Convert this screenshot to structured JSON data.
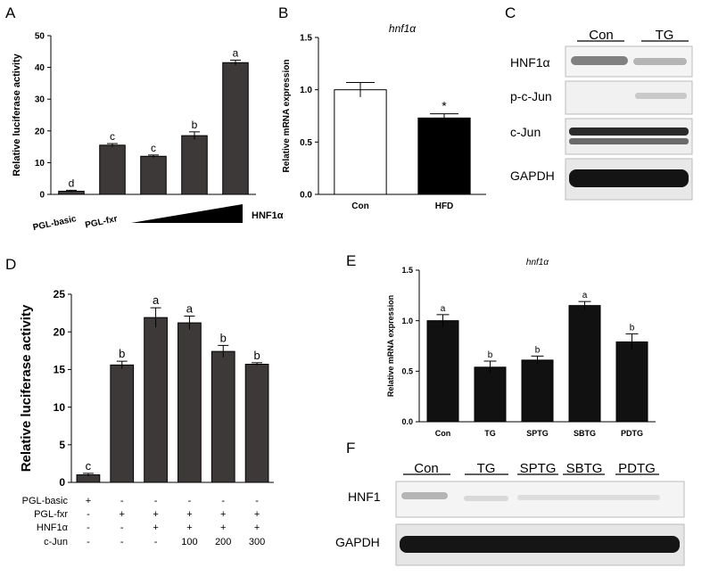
{
  "chart_data": [
    {
      "panel": "A",
      "type": "bar",
      "categories": [
        "PGL-basic",
        "PGL-fxr",
        "",
        "",
        ""
      ],
      "values": [
        1,
        15.5,
        12,
        18.5,
        41.5
      ],
      "errors": [
        0.3,
        0.5,
        0.4,
        1.2,
        0.8
      ],
      "sig": [
        "d",
        "c",
        "c",
        "b",
        "a"
      ],
      "ylabel": "Relative luciferase activity",
      "ylim": [
        0,
        50
      ],
      "yticks": [
        0,
        10,
        20,
        30,
        40,
        50
      ],
      "ramp_label": "HNF1α",
      "bar_color": "#3d3939"
    },
    {
      "panel": "B",
      "type": "bar",
      "title": "hnf1α",
      "categories": [
        "Con",
        "HFD"
      ],
      "values": [
        1.0,
        0.73
      ],
      "errors": [
        0.07,
        0.04
      ],
      "sig": [
        "",
        "*"
      ],
      "fills": [
        "#ffffff",
        "#000000"
      ],
      "ylabel": "Relative mRNA expression",
      "ylim": [
        0,
        1.5
      ],
      "yticks": [
        "0.0",
        "0.5",
        "1.0",
        "1.5"
      ]
    },
    {
      "panel": "D",
      "type": "bar",
      "values": [
        1,
        15.6,
        21.9,
        21.2,
        17.4,
        15.7
      ],
      "errors": [
        0.2,
        0.5,
        1.3,
        0.9,
        0.8,
        0.2
      ],
      "sig": [
        "c",
        "b",
        "a",
        "a",
        "b",
        "b"
      ],
      "ylabel": "Relative luciferase activity",
      "ylim": [
        0,
        25
      ],
      "yticks": [
        0,
        5,
        10,
        15,
        20,
        25
      ],
      "bar_color": "#3d3939",
      "table": [
        {
          "label": "PGL-basic",
          "cells": [
            "+",
            "-",
            "-",
            "-",
            "-",
            "-"
          ]
        },
        {
          "label": "PGL-fxr",
          "cells": [
            "-",
            "+",
            "+",
            "+",
            "+",
            "+"
          ]
        },
        {
          "label": "HNF1α",
          "cells": [
            "-",
            "-",
            "+",
            "+",
            "+",
            "+"
          ]
        },
        {
          "label": "c-Jun",
          "cells": [
            "-",
            "-",
            "-",
            "100",
            "200",
            "300"
          ]
        }
      ]
    },
    {
      "panel": "E",
      "type": "bar",
      "title": "hnf1α",
      "categories": [
        "Con",
        "TG",
        "SPTG",
        "SBTG",
        "PDTG"
      ],
      "values": [
        1.0,
        0.54,
        0.61,
        1.15,
        0.79
      ],
      "errors": [
        0.06,
        0.06,
        0.04,
        0.04,
        0.08
      ],
      "sig": [
        "a",
        "b",
        "b",
        "a",
        "b"
      ],
      "ylabel": "Relative mRNA expression",
      "ylim": [
        0,
        1.5
      ],
      "yticks": [
        "0.0",
        "0.5",
        "1.0",
        "1.5"
      ],
      "bar_color": "#111111"
    }
  ],
  "panels": {
    "A": "A",
    "B": "B",
    "C": "C",
    "D": "D",
    "E": "E",
    "F": "F"
  },
  "blot_c": {
    "groups": [
      "Con",
      "TG"
    ],
    "rows": [
      "HNF1α",
      "p-c-Jun",
      "c-Jun",
      "GAPDH"
    ]
  },
  "blot_f": {
    "groups": [
      "Con",
      "TG",
      "SPTG",
      "SBTG",
      "PDTG"
    ],
    "rows": [
      "HNF1",
      "GAPDH"
    ]
  }
}
